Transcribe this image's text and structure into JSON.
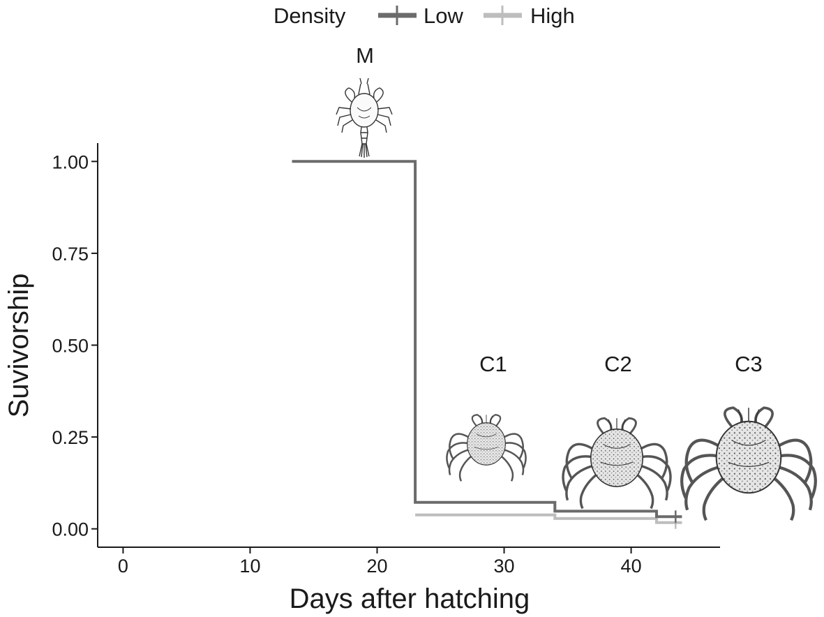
{
  "chart_data": {
    "type": "line",
    "step": true,
    "xlabel": "Days after hatching",
    "ylabel": "Suvivorship",
    "xlim": [
      -2,
      47
    ],
    "ylim": [
      -0.05,
      1.05
    ],
    "x_ticks": [
      0,
      10,
      20,
      30,
      40
    ],
    "x_tick_labels": [
      "0",
      "10",
      "20",
      "30",
      "40"
    ],
    "y_ticks": [
      0,
      0.25,
      0.5,
      0.75,
      1.0
    ],
    "y_tick_labels": [
      "0.00",
      "0.25",
      "0.50",
      "0.75",
      "1.00"
    ],
    "grid": false,
    "legend": {
      "title": "Density",
      "position": "top",
      "entries": [
        "Low",
        "High"
      ]
    },
    "series": [
      {
        "name": "Low",
        "color": "#6b6b6b",
        "points": [
          [
            13.3,
            1.0
          ],
          [
            23,
            1.0
          ],
          [
            23,
            0.072
          ],
          [
            34,
            0.072
          ],
          [
            34,
            0.048
          ],
          [
            42,
            0.048
          ],
          [
            42,
            0.033
          ],
          [
            44,
            0.033
          ]
        ],
        "censor": [
          [
            43.5,
            0.033
          ]
        ]
      },
      {
        "name": "High",
        "color": "#bdbdbd",
        "points": [
          [
            23,
            0.038
          ],
          [
            34,
            0.038
          ],
          [
            34,
            0.028
          ],
          [
            42,
            0.028
          ],
          [
            42,
            0.017
          ],
          [
            44,
            0.017
          ]
        ],
        "censor": [
          [
            43.5,
            0.017
          ]
        ]
      }
    ],
    "annotations": [
      {
        "text": "M",
        "x": 19,
        "y": 1.15,
        "illustration": "megalopa-larva"
      },
      {
        "text": "C1",
        "x": 29,
        "y": 0.45,
        "illustration": "crab-juvenile-small"
      },
      {
        "text": "C2",
        "x": 39,
        "y": 0.45,
        "illustration": "crab-juvenile-medium"
      },
      {
        "text": "C3",
        "x": 49.5,
        "y": 0.45,
        "illustration": "crab-juvenile-large"
      }
    ]
  }
}
